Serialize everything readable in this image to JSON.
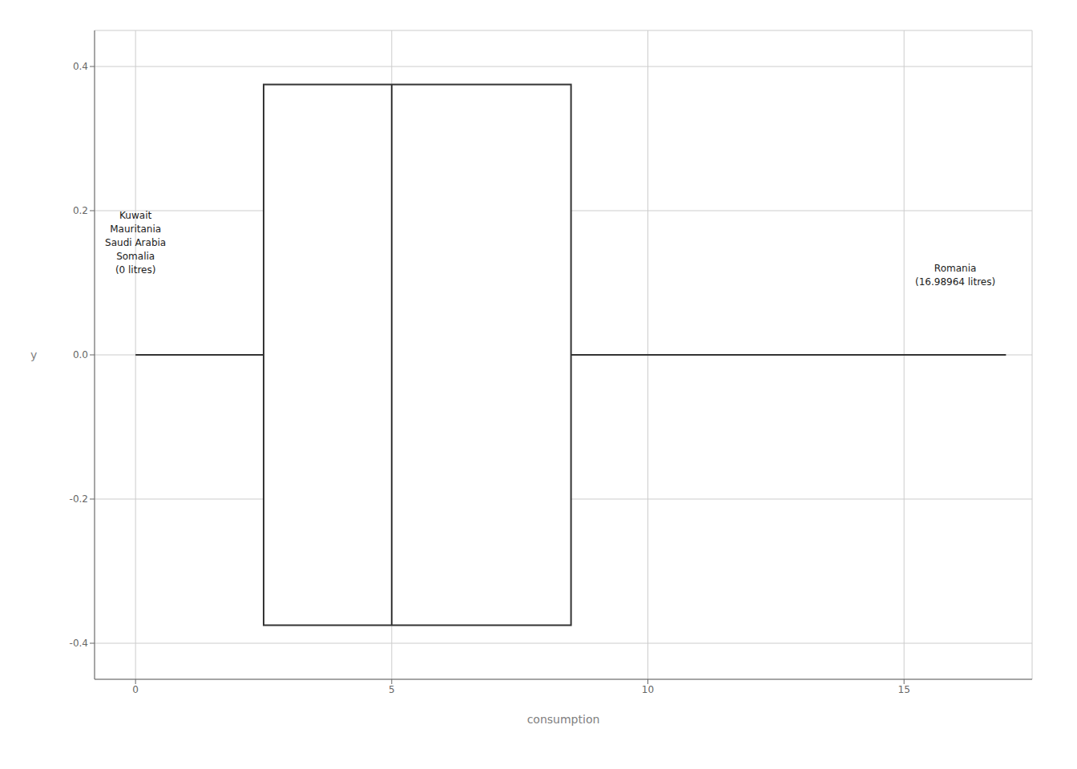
{
  "chart_data": {
    "type": "box",
    "orientation": "horizontal",
    "xlabel": "consumption",
    "ylabel": "y",
    "box": {
      "whisker_low": 0.0,
      "q1": 2.5,
      "median": 5.0,
      "q3": 8.5,
      "whisker_high": 16.98964
    },
    "xlim": [
      -0.8,
      17.5
    ],
    "ylim": [
      -0.45,
      0.45
    ],
    "xticks": [
      0,
      5,
      10,
      15
    ],
    "yticks": [
      -0.4,
      -0.2,
      {
        "value": 0.0,
        "label": "0.0"
      },
      0.2,
      0.4
    ],
    "grid": true,
    "annotations": [
      {
        "text": "Kuwait\nMauritania\nSaudi Arabia\nSomalia\n(0 litres)",
        "x": 0.0,
        "y": 0.155
      },
      {
        "text": "Romania\n(16.98964 litres)",
        "x": 16.0,
        "y": 0.11
      }
    ]
  }
}
